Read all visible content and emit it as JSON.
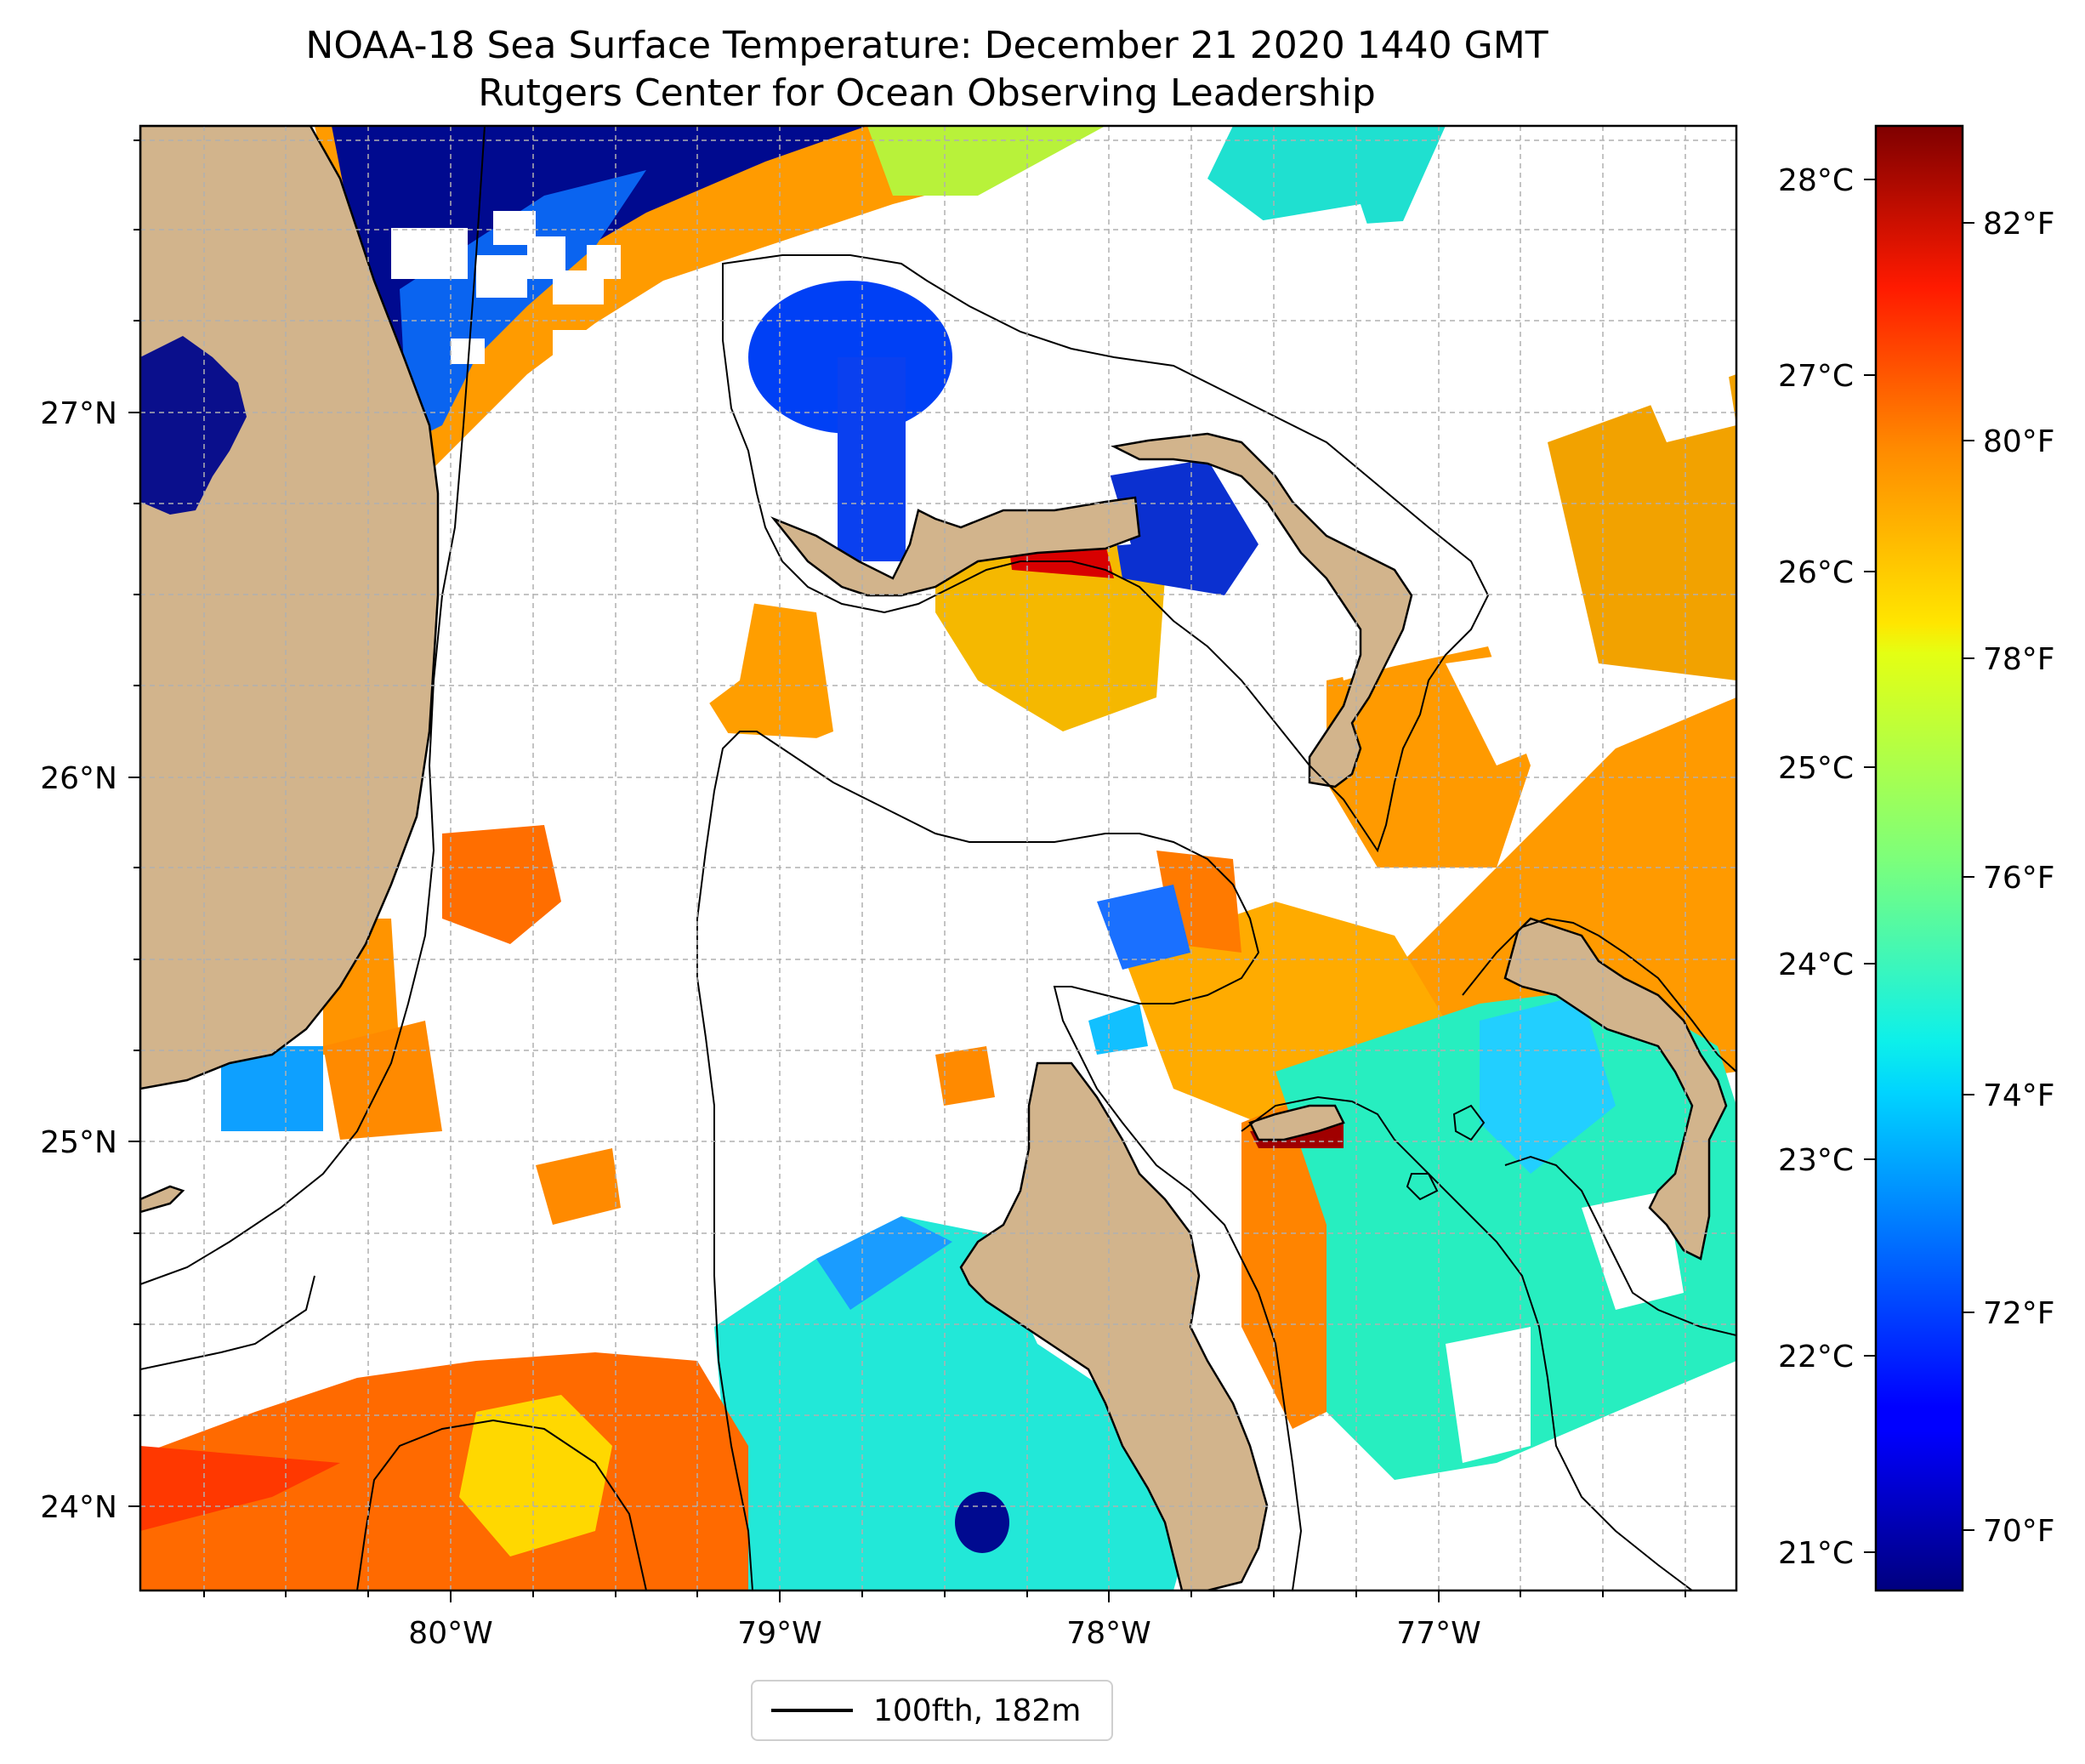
{
  "title": {
    "line1": "NOAA-18 Sea Surface Temperature: December 21 2020 1440 GMT",
    "line2": "Rutgers Center for Ocean Observing Leadership"
  },
  "map": {
    "lon_ticks": [
      "80°W",
      "79°W",
      "78°W",
      "77°W"
    ],
    "lat_ticks": [
      "27°N",
      "26°N",
      "25°N",
      "24°N"
    ],
    "lon_range": [
      -80.95,
      -76.1
    ],
    "lat_range": [
      23.75,
      27.85
    ],
    "gridlines": true,
    "colors": {
      "land": "#D2B48C",
      "no_data": "#ffffff",
      "grid": "#b0b0b0"
    }
  },
  "colorbar": {
    "celsius_ticks": [
      "21°C",
      "22°C",
      "23°C",
      "24°C",
      "25°C",
      "26°C",
      "27°C",
      "28°C"
    ],
    "fahrenheit_ticks": [
      "70°F",
      "72°F",
      "74°F",
      "76°F",
      "78°F",
      "80°F",
      "82°F"
    ],
    "range_f": [
      69.2,
      83.0
    ],
    "colormap": "jet"
  },
  "legend": {
    "label": "100fth, 182m",
    "placement": "bottom-center"
  }
}
